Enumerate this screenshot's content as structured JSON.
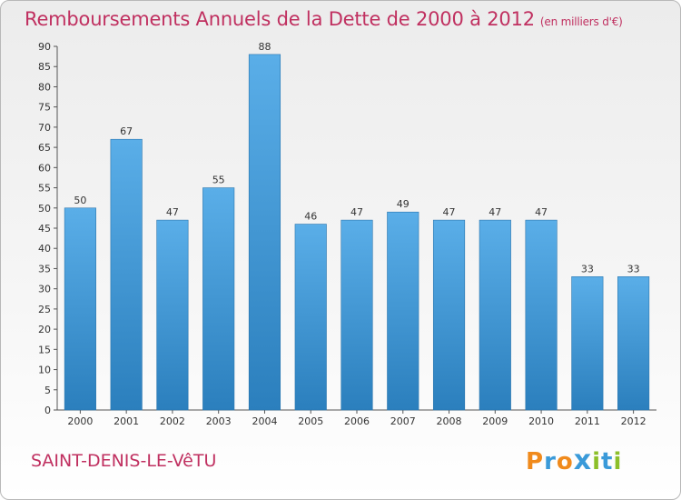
{
  "header": {
    "title": "Remboursements Annuels de la Dette de 2000 à 2012",
    "unit": "(en milliers d'€)"
  },
  "footer": {
    "city": "SAINT-DENIS-LE-VêTU",
    "logo": "Proxiti"
  },
  "colors": {
    "bar_top": "#5aaee8",
    "bar_bottom": "#2b7fbd",
    "title": "#c03060"
  },
  "chart_data": {
    "type": "bar",
    "title": "Remboursements Annuels de la Dette de 2000 à 2012",
    "subtitle": "(en milliers d'€)",
    "xlabel": "",
    "ylabel": "",
    "categories": [
      "2000",
      "2001",
      "2002",
      "2003",
      "2004",
      "2005",
      "2006",
      "2007",
      "2008",
      "2009",
      "2010",
      "2011",
      "2012"
    ],
    "values": [
      50,
      67,
      47,
      55,
      88,
      46,
      47,
      49,
      47,
      47,
      47,
      33,
      33
    ],
    "ylim": [
      0,
      90
    ],
    "yticks": [
      0,
      5,
      10,
      15,
      20,
      25,
      30,
      35,
      40,
      45,
      50,
      55,
      60,
      65,
      70,
      75,
      80,
      85,
      90
    ],
    "grid": false,
    "legend": "none"
  }
}
